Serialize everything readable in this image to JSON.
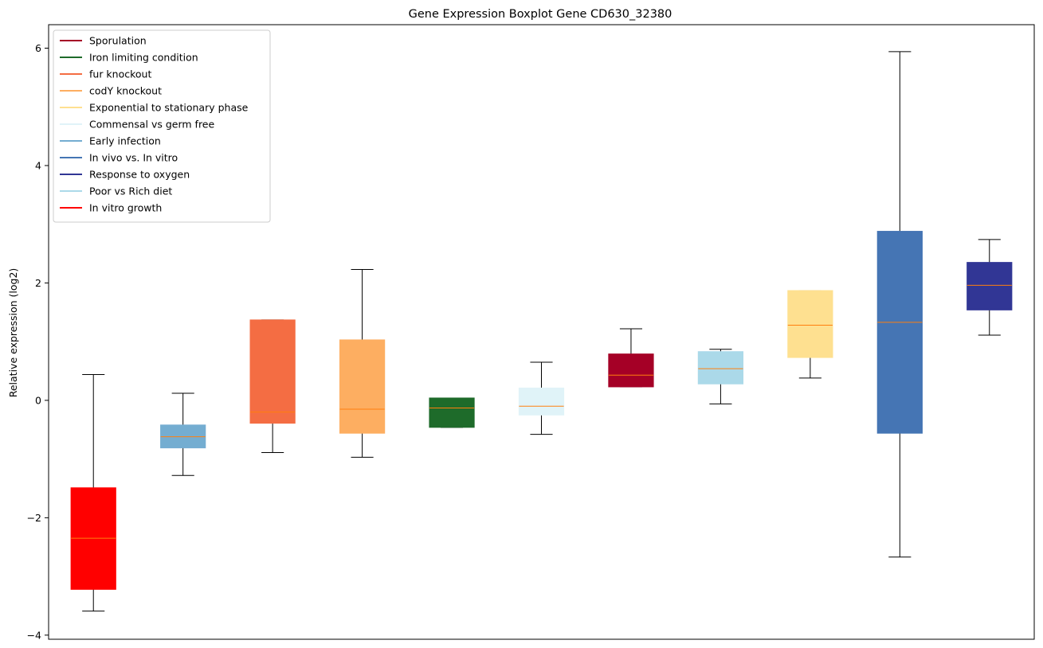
{
  "chart_data": {
    "type": "boxplot",
    "title": "Gene Expression Boxplot Gene CD630_32380",
    "xlabel": "",
    "ylabel": "Relative expression (log2)",
    "ylim": [
      -4.07,
      6.4
    ],
    "yticks": [
      -4,
      -2,
      0,
      2,
      4,
      6
    ],
    "legend_position": "top-left",
    "legend": [
      {
        "label": "Sporulation",
        "color": "#a50026"
      },
      {
        "label": "Iron limiting condition",
        "color": "#1e6b2a"
      },
      {
        "label": "fur knockout",
        "color": "#f46d43"
      },
      {
        "label": "codY knockout",
        "color": "#fdae61"
      },
      {
        "label": "Exponential to stationary phase",
        "color": "#fee090"
      },
      {
        "label": "Commensal vs germ free",
        "color": "#e0f3f8"
      },
      {
        "label": "Early infection",
        "color": "#74add1"
      },
      {
        "label": "In vivo vs. In vitro",
        "color": "#4575b4"
      },
      {
        "label": "Response to oxygen",
        "color": "#313695"
      },
      {
        "label": "Poor vs Rich diet",
        "color": "#abd9e9"
      },
      {
        "label": "In vitro growth",
        "color": "#ff0000"
      }
    ],
    "boxes": [
      {
        "condition": "In vitro growth",
        "color": "#ff0000",
        "whisker_low": -3.59,
        "q1": -3.22,
        "median": -2.35,
        "q3": -1.49,
        "whisker_high": 0.44
      },
      {
        "condition": "Early infection",
        "color": "#74add1",
        "whisker_low": -1.28,
        "q1": -0.81,
        "median": -0.62,
        "q3": -0.42,
        "whisker_high": 0.12
      },
      {
        "condition": "fur knockout",
        "color": "#f46d43",
        "whisker_low": -0.89,
        "q1": -0.39,
        "median": -0.2,
        "q3": 1.37,
        "whisker_high": 1.37
      },
      {
        "condition": "codY knockout",
        "color": "#fdae61",
        "whisker_low": -0.97,
        "q1": -0.56,
        "median": -0.15,
        "q3": 1.03,
        "whisker_high": 2.23
      },
      {
        "condition": "Iron limiting condition",
        "color": "#1e6b2a",
        "whisker_low": -0.46,
        "q1": -0.46,
        "median": -0.13,
        "q3": 0.04,
        "whisker_high": 0.04
      },
      {
        "condition": "Commensal vs germ free",
        "color": "#e0f3f8",
        "whisker_low": -0.58,
        "q1": -0.25,
        "median": -0.1,
        "q3": 0.21,
        "whisker_high": 0.65
      },
      {
        "condition": "Sporulation",
        "color": "#a50026",
        "whisker_low": 0.23,
        "q1": 0.23,
        "median": 0.43,
        "q3": 0.79,
        "whisker_high": 1.22
      },
      {
        "condition": "Poor vs Rich diet",
        "color": "#abd9e9",
        "whisker_low": -0.06,
        "q1": 0.28,
        "median": 0.54,
        "q3": 0.83,
        "whisker_high": 0.87
      },
      {
        "condition": "Exponential to stationary phase",
        "color": "#fee090",
        "whisker_low": 0.38,
        "q1": 0.73,
        "median": 1.28,
        "q3": 1.87,
        "whisker_high": 1.87
      },
      {
        "condition": "In vivo vs. In vitro",
        "color": "#4575b4",
        "whisker_low": -2.67,
        "q1": -0.56,
        "median": 1.33,
        "q3": 2.88,
        "whisker_high": 5.94
      },
      {
        "condition": "Response to oxygen",
        "color": "#313695",
        "whisker_low": 1.11,
        "q1": 1.54,
        "median": 1.96,
        "q3": 2.35,
        "whisker_high": 2.74
      }
    ],
    "median_color": "#ff7f0e",
    "whisker_color": "#000000"
  }
}
